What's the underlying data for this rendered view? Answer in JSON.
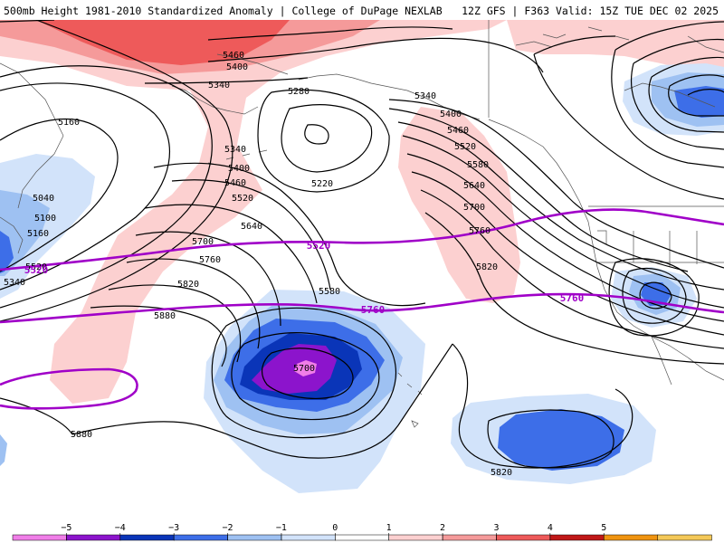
{
  "header": {
    "left": "500mb Height 1981-2010 Standardized Anomaly | College of DuPage NEXLAB",
    "right": "12Z GFS | F363 Valid: 15Z TUE DEC 02 2025"
  },
  "legend": {
    "ticks": [
      "−5",
      "−4",
      "−3",
      "−2",
      "−1",
      "0",
      "1",
      "2",
      "3",
      "4",
      "5"
    ],
    "colors": [
      "#f07ee8",
      "#8c14cc",
      "#0a35b8",
      "#3d6ee8",
      "#9ec1f2",
      "#d2e3fa",
      "#ffffff",
      "#fcd0d0",
      "#f59a9a",
      "#ee5a5a",
      "#c01818",
      "#f09410",
      "#f4c858"
    ]
  },
  "map": {
    "height_labels": [
      "5460",
      "5400",
      "5340",
      "5280",
      "5160",
      "5040",
      "5100",
      "5160",
      "5520",
      "5340",
      "5340",
      "5400",
      "5460",
      "5520",
      "5640",
      "5700",
      "5760",
      "5820",
      "5880",
      "5220",
      "5340",
      "5400",
      "5460",
      "5520",
      "5580",
      "5640",
      "5700",
      "5760",
      "5820",
      "5580",
      "5700",
      "5880",
      "5820"
    ],
    "highlight_labels": [
      "5520",
      "5760",
      "5520",
      "5760"
    ]
  },
  "colors": {
    "contour": "#000000",
    "highlight_contour": "#a000c8",
    "coastline": "#555555"
  }
}
